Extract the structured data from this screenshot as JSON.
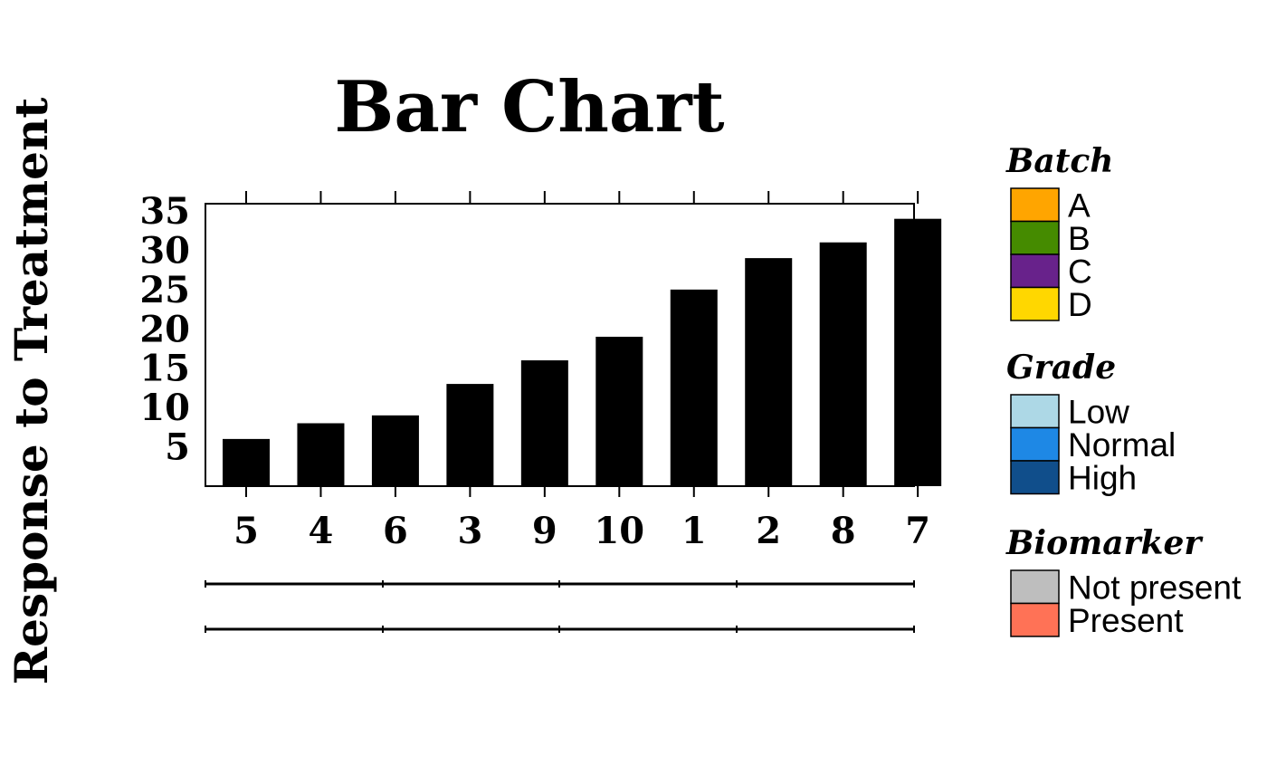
{
  "chart_data": {
    "type": "bar",
    "title": "Bar Chart",
    "xlabel": "",
    "ylabel": "Response to Treatment",
    "categories": [
      "5",
      "4",
      "6",
      "3",
      "9",
      "10",
      "1",
      "2",
      "8",
      "7"
    ],
    "values": [
      6,
      8,
      9,
      13,
      16,
      19,
      25,
      29,
      31,
      34
    ],
    "ylim": [
      0,
      35
    ],
    "yticks": [
      5,
      10,
      15,
      20,
      25,
      30,
      35
    ],
    "bar_color": "#000000",
    "grid": false,
    "legend_position": "right",
    "legends": [
      {
        "title": "Batch",
        "items": [
          {
            "label": "A",
            "color": "#FFA500"
          },
          {
            "label": "B",
            "color": "#458B00"
          },
          {
            "label": "C",
            "color": "#68228B"
          },
          {
            "label": "D",
            "color": "#FFD700"
          }
        ]
      },
      {
        "title": "Grade",
        "items": [
          {
            "label": "Low",
            "color": "#ADD8E6"
          },
          {
            "label": "Normal",
            "color": "#1E88E5"
          },
          {
            "label": "High",
            "color": "#104E8B"
          }
        ]
      },
      {
        "title": "Biomarker",
        "items": [
          {
            "label": "Not present",
            "color": "#BEBEBE"
          },
          {
            "label": "Present",
            "color": "#FF7256"
          }
        ]
      }
    ]
  }
}
